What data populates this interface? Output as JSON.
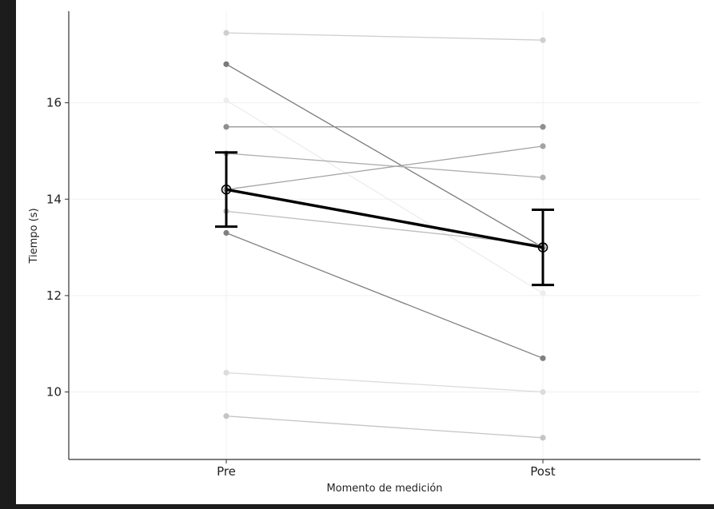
{
  "chart_data": {
    "type": "line",
    "xlabel": "Momento de medición",
    "ylabel": "Tiempo (s)",
    "categories": [
      "Pre",
      "Post"
    ],
    "ylim": [
      8.6,
      17.9
    ],
    "yticks": [
      10,
      12,
      14,
      16
    ],
    "grid": true,
    "participants": [
      {
        "values": [
          17.45,
          17.3
        ],
        "color": "#cfcfcf"
      },
      {
        "values": [
          16.8,
          13.0
        ],
        "color": "#7a7a7a"
      },
      {
        "values": [
          16.05,
          12.05
        ],
        "color": "#ededed"
      },
      {
        "values": [
          15.5,
          15.5
        ],
        "color": "#8e8e8e"
      },
      {
        "values": [
          14.95,
          14.45
        ],
        "color": "#b0b0b0"
      },
      {
        "values": [
          14.2,
          15.1
        ],
        "color": "#a3a3a3"
      },
      {
        "values": [
          13.75,
          13.05
        ],
        "color": "#bdbdbd"
      },
      {
        "values": [
          13.3,
          10.7
        ],
        "color": "#808080"
      },
      {
        "values": [
          10.4,
          10.0
        ],
        "color": "#dcdcdc"
      },
      {
        "values": [
          9.5,
          9.05
        ],
        "color": "#c4c4c4"
      }
    ],
    "mean": {
      "values": [
        14.2,
        13.0
      ],
      "error": [
        0.77,
        0.78
      ],
      "color": "#000000"
    }
  }
}
